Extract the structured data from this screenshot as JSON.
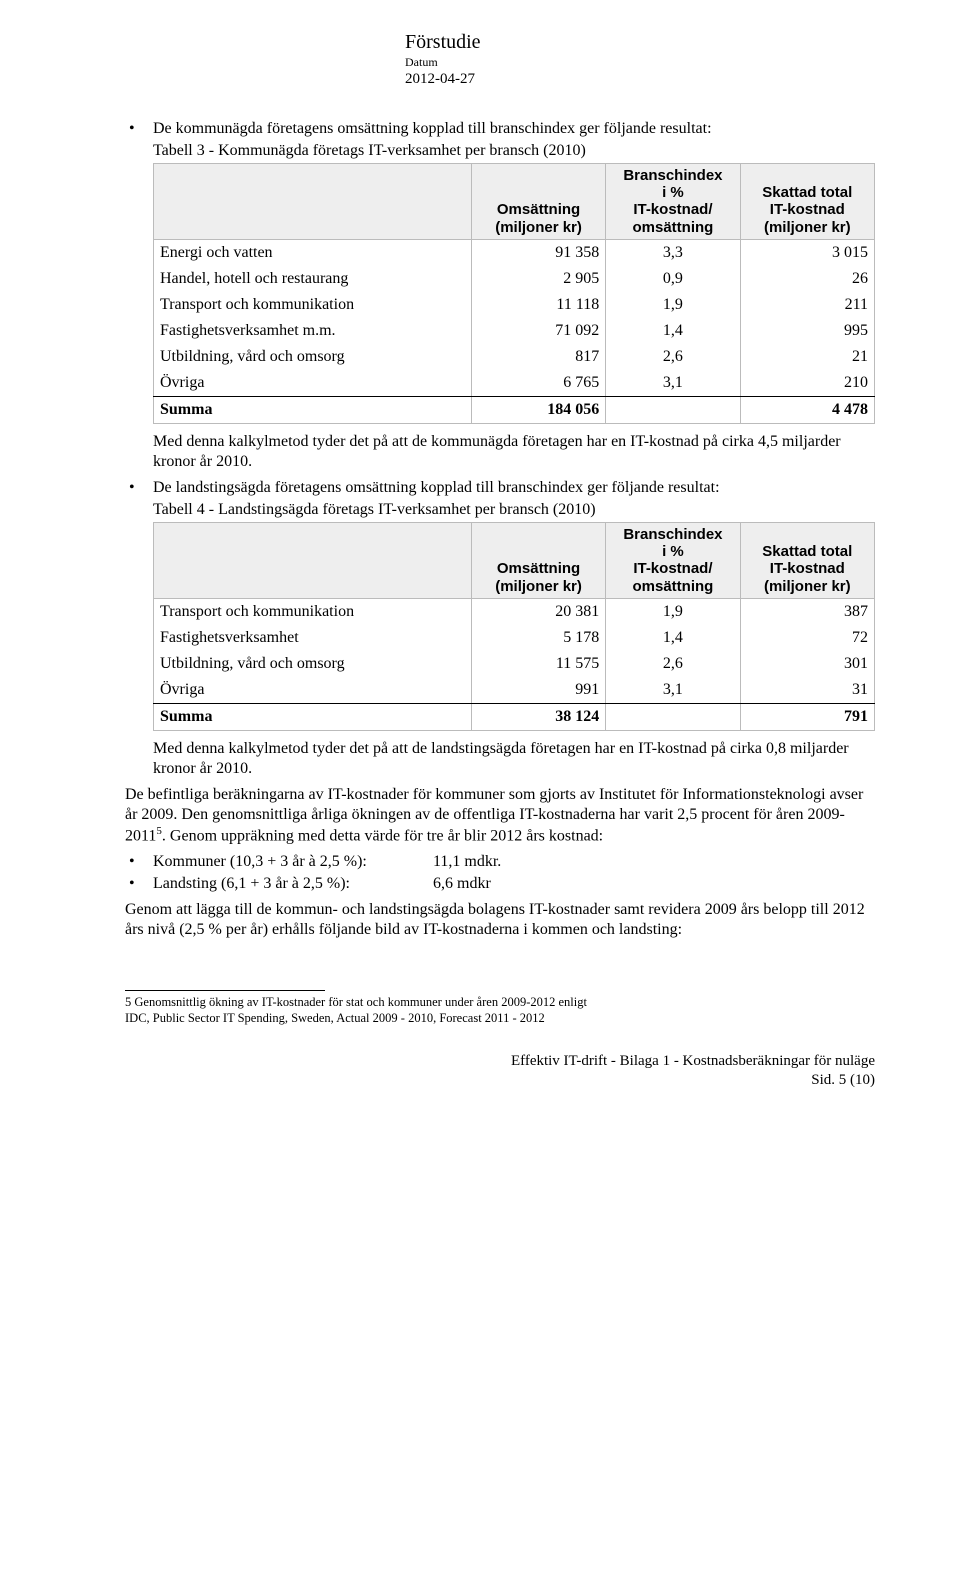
{
  "meta": {
    "title": "Förstudie",
    "sub": "Datum",
    "date": "2012-04-27"
  },
  "bullet1": {
    "intro": "De kommunägda företagens omsättning kopplad till branschindex ger följande resultat:",
    "caption": "Tabell 3 - Kommunägda företags IT-verksamhet per bransch (2010)"
  },
  "table3": {
    "headers": {
      "c0": "",
      "c1_l1": "Omsättning",
      "c1_l2": "(miljoner kr)",
      "c2_l1": "Branschindex",
      "c2_l2": "i %",
      "c2_l3": "IT-kostnad/",
      "c2_l4": "omsättning",
      "c3_l1": "Skattad total",
      "c3_l2": "IT-kostnad",
      "c3_l3": "(miljoner kr)"
    },
    "rows": [
      {
        "label": "Energi och vatten",
        "c1": "91 358",
        "c2": "3,3",
        "c3": "3 015"
      },
      {
        "label": "Handel, hotell och restaurang",
        "c1": "2 905",
        "c2": "0,9",
        "c3": "26"
      },
      {
        "label": "Transport och kommunikation",
        "c1": "11 118",
        "c2": "1,9",
        "c3": "211"
      },
      {
        "label": "Fastighetsverksamhet m.m.",
        "c1": "71 092",
        "c2": "1,4",
        "c3": "995"
      },
      {
        "label": "Utbildning, vård och omsorg",
        "c1": "817",
        "c2": "2,6",
        "c3": "21"
      },
      {
        "label": "Övriga",
        "c1": "6 765",
        "c2": "3,1",
        "c3": "210"
      }
    ],
    "sum": {
      "label": "Summa",
      "c1": "184 056",
      "c2": "",
      "c3": "4 478"
    }
  },
  "after_t3": "Med denna kalkylmetod tyder det på att de kommunägda företagen har en IT-kostnad på cirka 4,5 miljarder kronor år 2010.",
  "bullet2": {
    "intro": "De landstingsägda företagens omsättning kopplad till branschindex ger följande resultat:",
    "caption": "Tabell 4 - Landstingsägda företags IT-verksamhet per bransch (2010)"
  },
  "table4": {
    "headers": {
      "c1_l1": "Omsättning",
      "c1_l2": "(miljoner kr)",
      "c2_l1": "Branschindex",
      "c2_l2": "i %",
      "c2_l3": "IT-kostnad/",
      "c2_l4": "omsättning",
      "c3_l1": "Skattad total",
      "c3_l2": "IT-kostnad",
      "c3_l3": "(miljoner kr)"
    },
    "rows": [
      {
        "label": "Transport och kommunikation",
        "c1": "20 381",
        "c2": "1,9",
        "c3": "387"
      },
      {
        "label": "Fastighetsverksamhet",
        "c1": "5 178",
        "c2": "1,4",
        "c3": "72"
      },
      {
        "label": "Utbildning, vård och omsorg",
        "c1": "11 575",
        "c2": "2,6",
        "c3": "301"
      },
      {
        "label": "Övriga",
        "c1": "991",
        "c2": "3,1",
        "c3": "31"
      }
    ],
    "sum": {
      "label": "Summa",
      "c1": "38 124",
      "c2": "",
      "c3": "791"
    }
  },
  "after_t4": "Med denna kalkylmetod tyder det på att de landstingsägda företagen har en IT-kostnad på cirka 0,8 miljarder kronor år 2010.",
  "para1_a": "De befintliga beräkningarna av IT-kostnader för kommuner som gjorts av Institutet för Informationsteknologi avser år 2009. Den genomsnittliga årliga ökningen av de offentliga IT-kostnaderna har varit 2,5 procent för åren 2009-2011",
  "para1_b": ". Genom uppräkning med detta värde för tre år blir 2012 års kostnad:",
  "inner_bullets": [
    {
      "lab": "Kommuner (10,3 + 3 år à 2,5 %):",
      "val": "11,1 mdkr."
    },
    {
      "lab": "Landsting (6,1 + 3 år à 2,5 %):",
      "val": "6,6 mdkr"
    }
  ],
  "para2": "Genom att lägga till de kommun- och landstingsägda bolagens IT-kostnader samt revidera 2009 års belopp till 2012 års nivå (2,5 % per år) erhålls följande bild av IT-kostnaderna i kommen och landsting:",
  "footnote_sup": "5",
  "footnote_a": " Genomsnittlig ökning av IT-kostnader för stat och kommuner under åren 2009-2012 enligt",
  "footnote_b": "IDC, Public Sector IT Spending, Sweden,  Actual 2009 - 2010, Forecast 2011 - 2012",
  "footer_l1": "Effektiv IT-drift  -  Bilaga 1 - Kostnadsberäkningar för nuläge",
  "footer_l2": "Sid. 5 (10)"
}
